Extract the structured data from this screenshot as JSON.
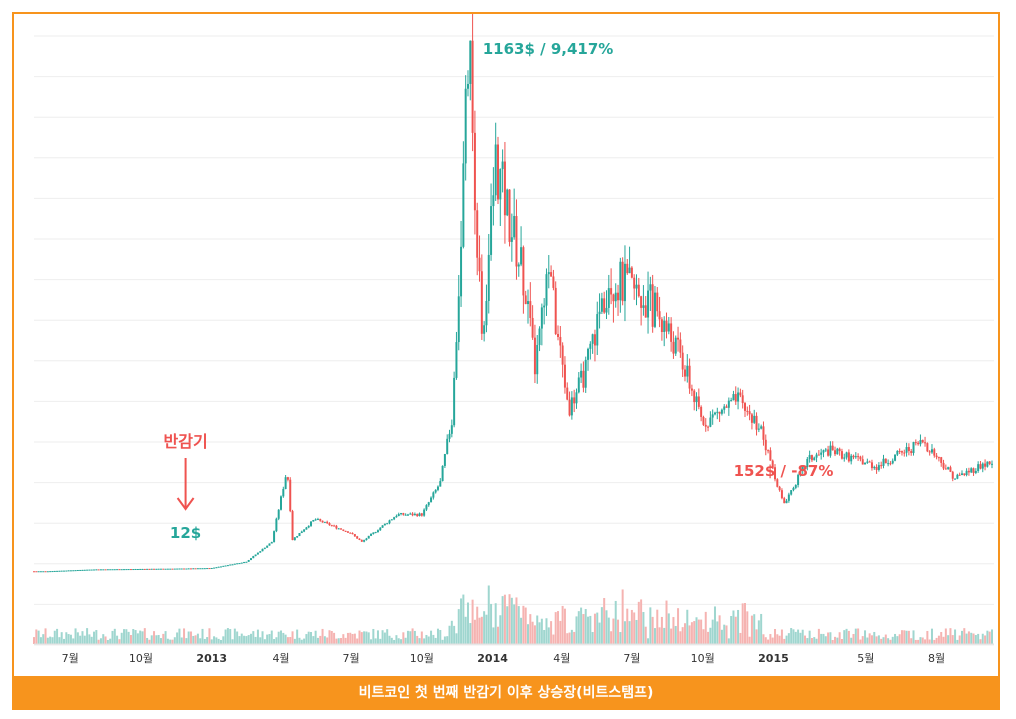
{
  "caption": "비트코인 첫 번째 반감기 이후 상승장(비트스탬프)",
  "colors": {
    "up": "#26a69a",
    "down": "#ef5350",
    "frame": "#f7941d",
    "grid": "#eeeeee"
  },
  "chart_data": {
    "type": "candlestick",
    "title": "",
    "xlabel": "",
    "ylabel": "",
    "grid": true,
    "x_ticks": [
      "7월",
      "10월",
      "2013",
      "4월",
      "7월",
      "10월",
      "2014",
      "4월",
      "7월",
      "10월",
      "2015",
      "5월",
      "8월"
    ],
    "series": [
      {
        "values": [
          [
            "2012-06-01",
            6
          ],
          [
            "2012-08-01",
            10
          ],
          [
            "2012-10-01",
            11
          ],
          [
            "2012-11-28",
            12
          ],
          [
            "2013-01-01",
            13
          ],
          [
            "2013-02-15",
            27
          ],
          [
            "2013-03-20",
            70
          ],
          [
            "2013-04-09",
            230
          ],
          [
            "2013-04-16",
            75
          ],
          [
            "2013-05-15",
            120
          ],
          [
            "2013-06-30",
            90
          ],
          [
            "2013-07-15",
            70
          ],
          [
            "2013-08-30",
            130
          ],
          [
            "2013-10-01",
            130
          ],
          [
            "2013-10-25",
            200
          ],
          [
            "2013-11-10",
            350
          ],
          [
            "2013-11-20",
            700
          ],
          [
            "2013-12-01",
            1163
          ],
          [
            "2013-12-18",
            500
          ],
          [
            "2014-01-05",
            900
          ],
          [
            "2014-02-10",
            650
          ],
          [
            "2014-02-25",
            450
          ],
          [
            "2014-03-15",
            650
          ],
          [
            "2014-04-10",
            360
          ],
          [
            "2014-05-01",
            440
          ],
          [
            "2014-06-01",
            650
          ],
          [
            "2014-07-01",
            620
          ],
          [
            "2014-08-01",
            580
          ],
          [
            "2014-09-01",
            480
          ],
          [
            "2014-10-01",
            330
          ],
          [
            "2014-11-15",
            380
          ],
          [
            "2014-12-15",
            320
          ],
          [
            "2015-01-14",
            152
          ],
          [
            "2015-02-15",
            250
          ],
          [
            "2015-03-15",
            270
          ],
          [
            "2015-05-15",
            235
          ],
          [
            "2015-07-15",
            290
          ],
          [
            "2015-08-25",
            210
          ],
          [
            "2015-10-01",
            240
          ]
        ]
      }
    ],
    "annotations": [
      {
        "id": "halving",
        "text": "반감기",
        "date": "2012-11-28",
        "value": 12,
        "color": "#ef5350"
      },
      {
        "id": "low-price",
        "text": "12$",
        "date": "2012-11-28",
        "value": 12,
        "color": "#26a69a"
      },
      {
        "id": "peak",
        "text": "1163$ / 9,417%",
        "date": "2013-12-01",
        "value": 1163,
        "color": "#26a69a"
      },
      {
        "id": "bottom",
        "text": "152$ / -87%",
        "date": "2015-01-14",
        "value": 152,
        "color": "#ef5350"
      }
    ]
  }
}
